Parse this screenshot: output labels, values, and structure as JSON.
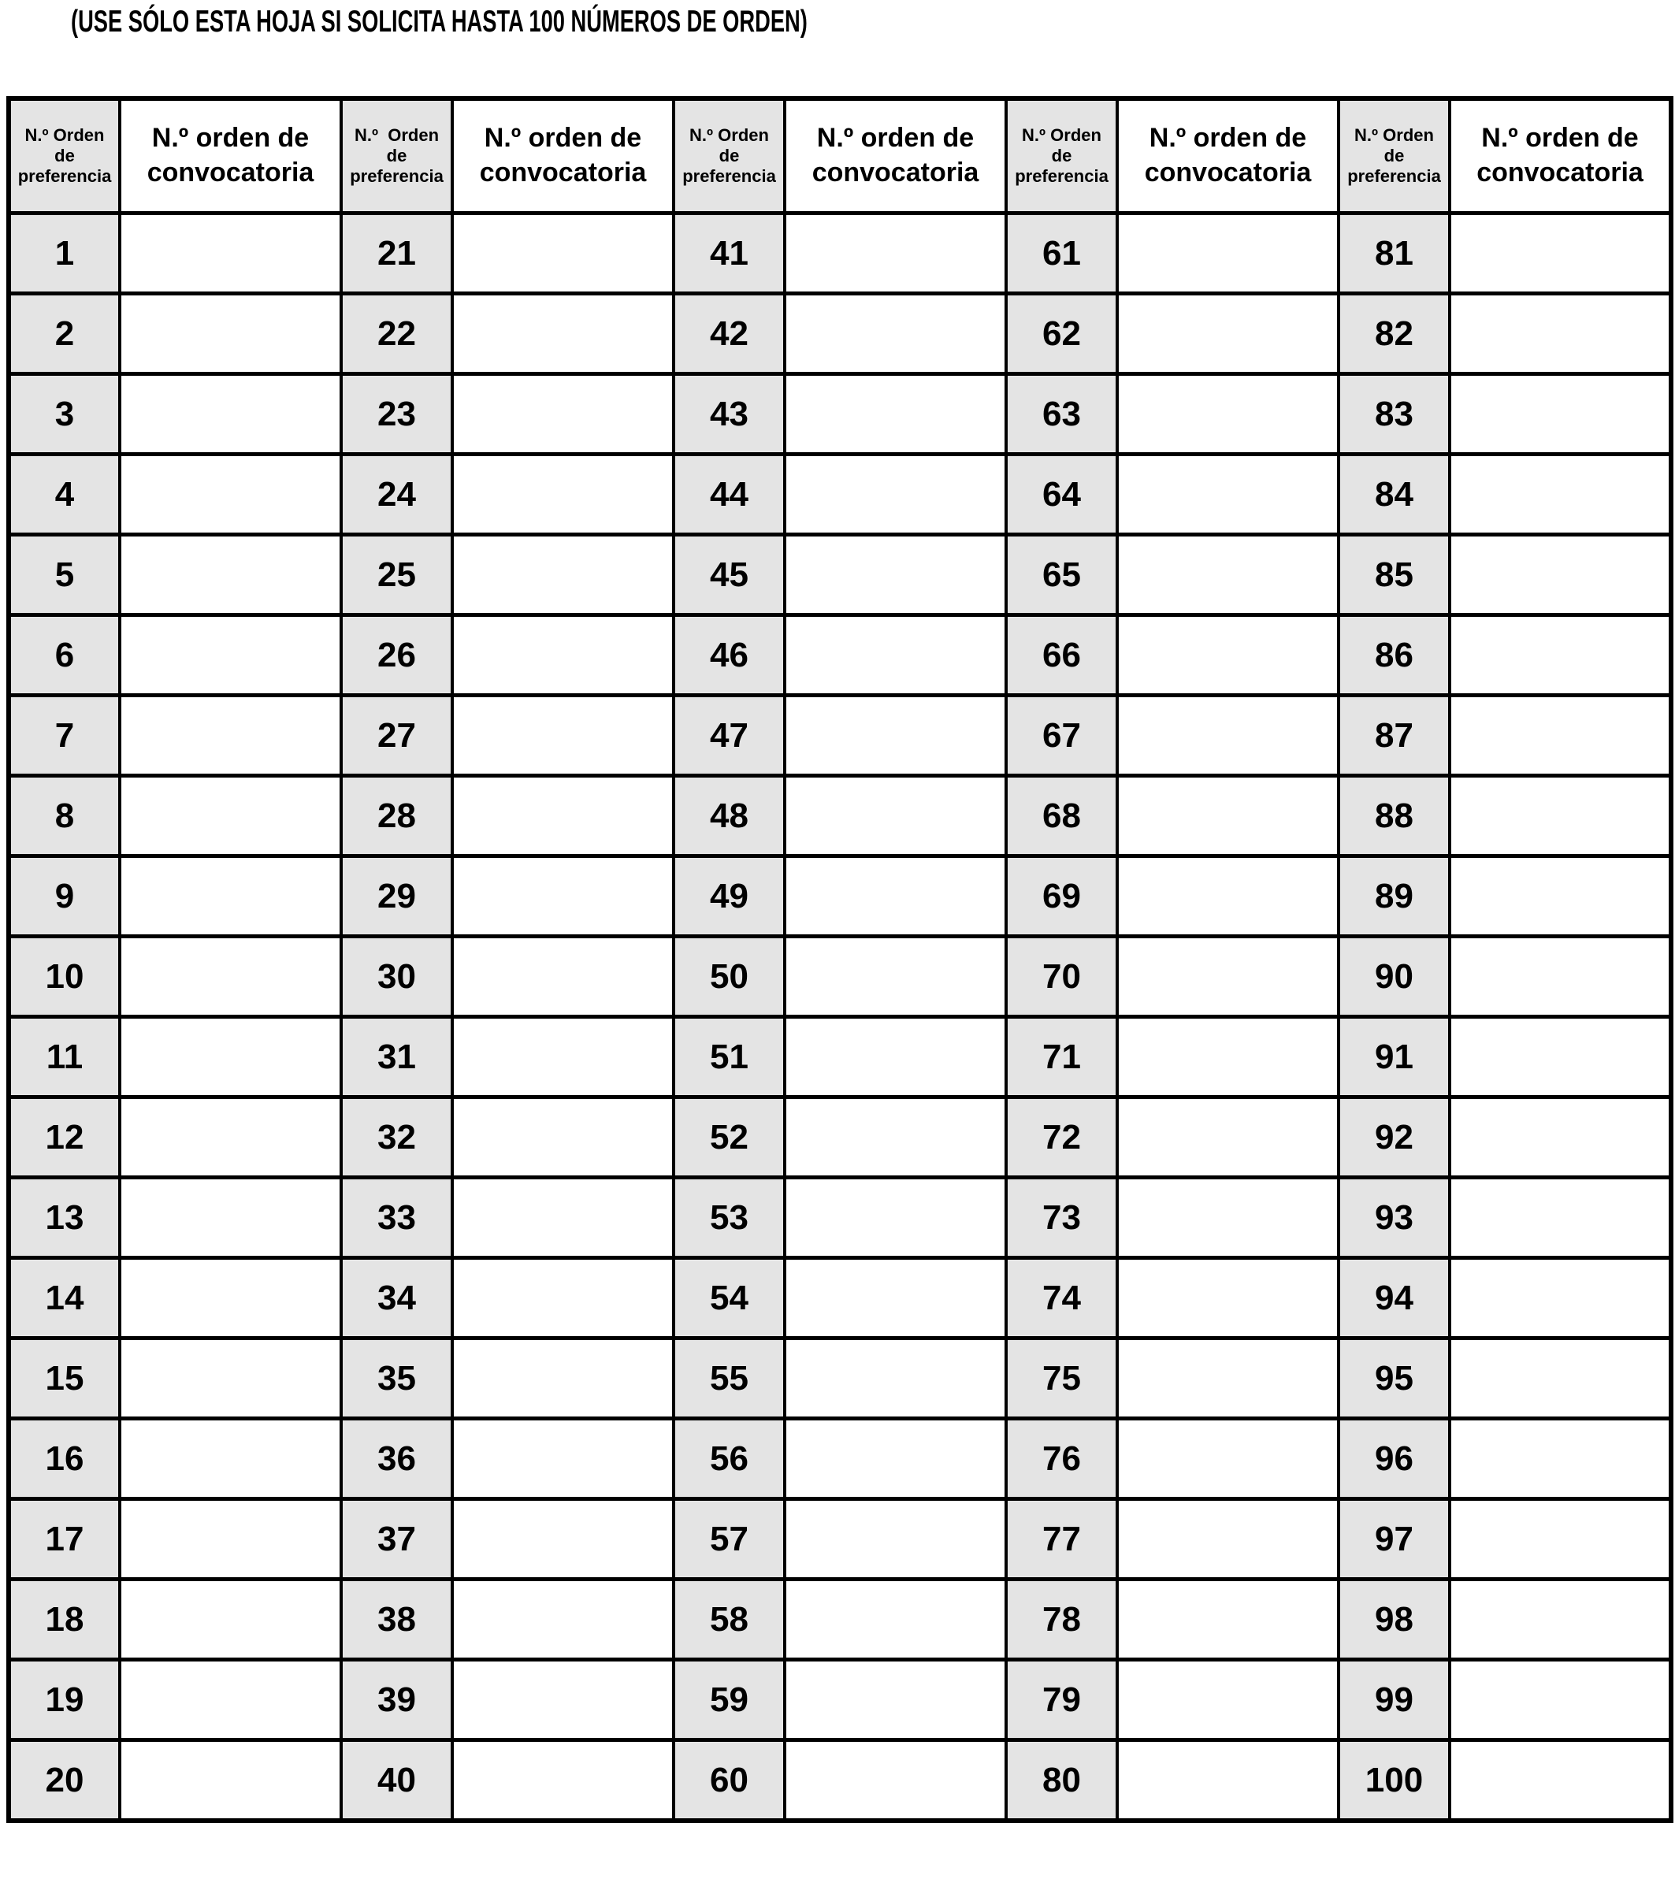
{
  "title": "(USE SÓLO ESTA HOJA SI SOLICITA HASTA 100 NÚMEROS DE ORDEN)",
  "colors": {
    "header_cell_bg": "#e4e4e4",
    "grid_border": "#000000"
  },
  "table": {
    "row_count": 20,
    "pairs": [
      {
        "pref_header": "N.º Orden\nde\npreferencia",
        "conv_header": "N.º orden de\nconvocatoria",
        "numbers": [
          1,
          2,
          3,
          4,
          5,
          6,
          7,
          8,
          9,
          10,
          11,
          12,
          13,
          14,
          15,
          16,
          17,
          18,
          19,
          20
        ],
        "conv_values": [
          "",
          "",
          "",
          "",
          "",
          "",
          "",
          "",
          "",
          "",
          "",
          "",
          "",
          "",
          "",
          "",
          "",
          "",
          "",
          ""
        ]
      },
      {
        "pref_header": "N.º  Orden\nde\npreferencia",
        "conv_header": "N.º orden de\nconvocatoria",
        "numbers": [
          21,
          22,
          23,
          24,
          25,
          26,
          27,
          28,
          29,
          30,
          31,
          32,
          33,
          34,
          35,
          36,
          37,
          38,
          39,
          40
        ],
        "conv_values": [
          "",
          "",
          "",
          "",
          "",
          "",
          "",
          "",
          "",
          "",
          "",
          "",
          "",
          "",
          "",
          "",
          "",
          "",
          "",
          ""
        ]
      },
      {
        "pref_header": "N.º Orden\nde\npreferencia",
        "conv_header": "N.º orden de\nconvocatoria",
        "numbers": [
          41,
          42,
          43,
          44,
          45,
          46,
          47,
          48,
          49,
          50,
          51,
          52,
          53,
          54,
          55,
          56,
          57,
          58,
          59,
          60
        ],
        "conv_values": [
          "",
          "",
          "",
          "",
          "",
          "",
          "",
          "",
          "",
          "",
          "",
          "",
          "",
          "",
          "",
          "",
          "",
          "",
          "",
          ""
        ]
      },
      {
        "pref_header": "N.º Orden\nde\npreferencia",
        "conv_header": "N.º orden de\nconvocatoria",
        "numbers": [
          61,
          62,
          63,
          64,
          65,
          66,
          67,
          68,
          69,
          70,
          71,
          72,
          73,
          74,
          75,
          76,
          77,
          78,
          79,
          80
        ],
        "conv_values": [
          "",
          "",
          "",
          "",
          "",
          "",
          "",
          "",
          "",
          "",
          "",
          "",
          "",
          "",
          "",
          "",
          "",
          "",
          "",
          ""
        ]
      },
      {
        "pref_header": "N.º Orden\nde\npreferencia",
        "conv_header": "N.º orden de\nconvocatoria",
        "numbers": [
          81,
          82,
          83,
          84,
          85,
          86,
          87,
          88,
          89,
          90,
          91,
          92,
          93,
          94,
          95,
          96,
          97,
          98,
          99,
          100
        ],
        "conv_values": [
          "",
          "",
          "",
          "",
          "",
          "",
          "",
          "",
          "",
          "",
          "",
          "",
          "",
          "",
          "",
          "",
          "",
          "",
          "",
          ""
        ]
      }
    ]
  }
}
